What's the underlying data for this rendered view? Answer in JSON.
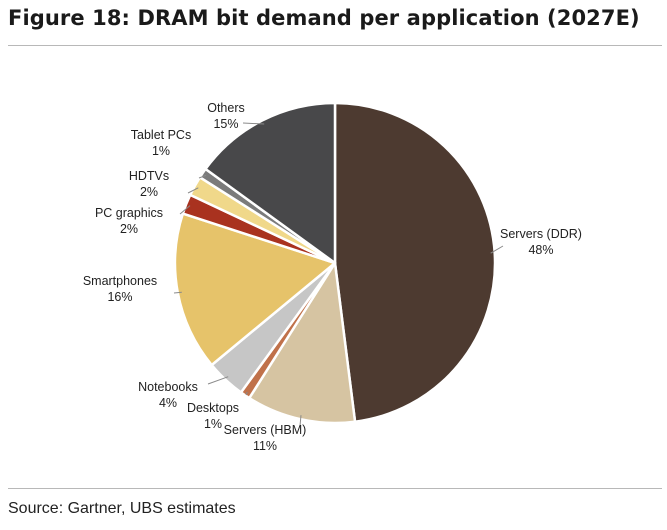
{
  "title": "Figure 18: DRAM bit demand per application (2027E)",
  "source": "Source: Gartner, UBS estimates",
  "chart_data": {
    "type": "pie",
    "title": "Figure 18: DRAM bit demand per application (2027E)",
    "start_angle_deg": 0,
    "direction": "clockwise",
    "slices": [
      {
        "name": "Servers (DDR)",
        "label": "Servers (DDR)",
        "pct_label": "48%",
        "value": 48,
        "color": "#4d3a30"
      },
      {
        "name": "Servers (HBM)",
        "label": "Servers (HBM)",
        "pct_label": "11%",
        "value": 11,
        "color": "#d6c4a2"
      },
      {
        "name": "Desktops",
        "label": "Desktops",
        "pct_label": "1%",
        "value": 1,
        "color": "#c0714a"
      },
      {
        "name": "Notebooks",
        "label": "Notebooks",
        "pct_label": "4%",
        "value": 4,
        "color": "#c6c6c6"
      },
      {
        "name": "Smartphones",
        "label": "Smartphones",
        "pct_label": "16%",
        "value": 16,
        "color": "#e6c36a"
      },
      {
        "name": "PC graphics",
        "label": "PC graphics",
        "pct_label": "2%",
        "value": 2,
        "color": "#a9321f"
      },
      {
        "name": "HDTVs",
        "label": "HDTVs",
        "pct_label": "2%",
        "value": 2,
        "color": "#f0d88a"
      },
      {
        "name": "Tablet PCs",
        "label": "Tablet PCs",
        "pct_label": "1%",
        "value": 1,
        "color": "#7b7b7b"
      },
      {
        "name": "Others",
        "label": "Others",
        "pct_label": "15%",
        "value": 15,
        "color": "#48484a"
      }
    ]
  }
}
